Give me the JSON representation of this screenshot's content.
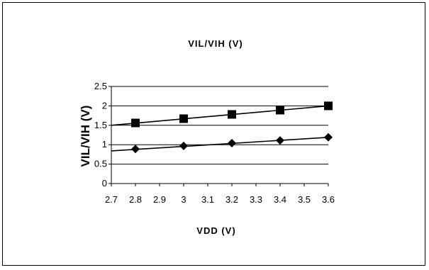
{
  "chart_data": {
    "type": "line",
    "title": "VIL/VIH  (V)",
    "xlabel": "VDD  (V)",
    "ylabel": "VIL/VIH  (V)",
    "xlim": [
      2.7,
      3.6
    ],
    "ylim": [
      0,
      2.5
    ],
    "x_ticks": [
      "2.7",
      "2.8",
      "2.9",
      "3",
      "3.1",
      "3.2",
      "3.3",
      "3.4",
      "3.5",
      "3.6"
    ],
    "y_ticks": [
      "0",
      "0.5",
      "1",
      "1.5",
      "2",
      "2.5"
    ],
    "grid": "horizontal",
    "series": [
      {
        "marker": "square",
        "x": [
          2.8,
          3.0,
          3.2,
          3.4,
          3.6
        ],
        "values": [
          1.56,
          1.67,
          1.78,
          1.89,
          2.0
        ],
        "trendline": [
          [
            2.7,
            1.5
          ],
          [
            3.6,
            2.0
          ]
        ]
      },
      {
        "marker": "diamond",
        "x": [
          2.8,
          3.0,
          3.2,
          3.4,
          3.6
        ],
        "values": [
          0.89,
          0.97,
          1.04,
          1.11,
          1.19
        ],
        "trendline": [
          [
            2.7,
            0.84
          ],
          [
            3.6,
            1.19
          ]
        ]
      }
    ]
  }
}
